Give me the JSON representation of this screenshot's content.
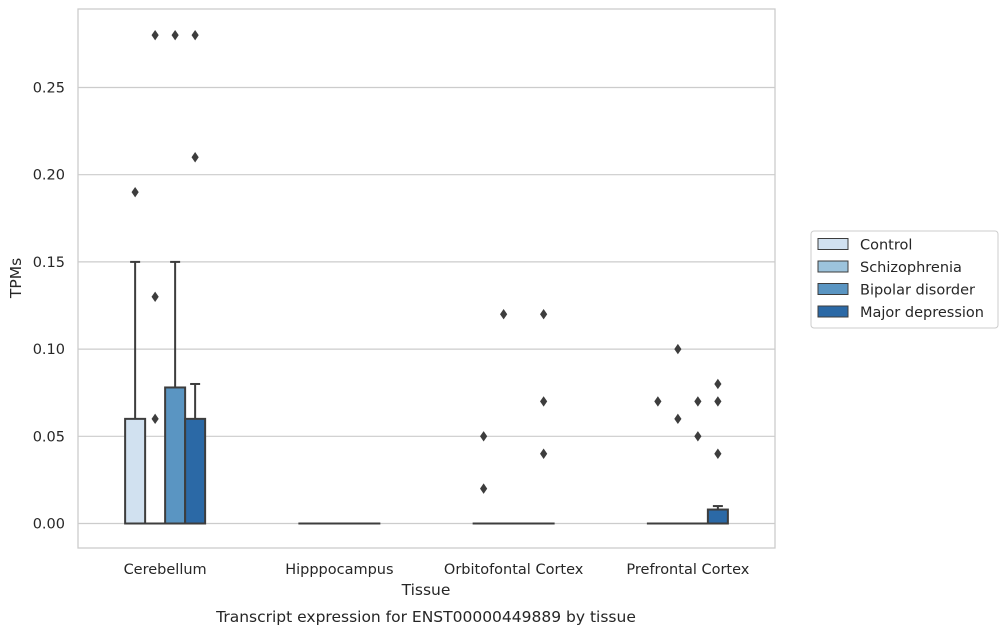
{
  "chart_data": {
    "type": "box",
    "title": "",
    "caption": "Transcript expression for ENST00000449889 by tissue",
    "xlabel": "Tissue",
    "ylabel": "TPMs",
    "ylim": [
      -0.0135,
      0.29
    ],
    "yticks": [
      0.0,
      0.05,
      0.1,
      0.15,
      0.2,
      0.25
    ],
    "ytick_labels": [
      "0.00",
      "0.05",
      "0.10",
      "0.15",
      "0.20",
      "0.25"
    ],
    "grid": "horizontal",
    "legend_position": "right-center",
    "categories": [
      "Cerebellum",
      "Hipppocampus",
      "Orbitofontal Cortex",
      "Prefrontal Cortex"
    ],
    "series": [
      {
        "name": "Control",
        "color": "#d1e1f0",
        "boxes": [
          {
            "q1": 0.0,
            "median": 0.0,
            "q3": 0.06,
            "whisker_low": 0.0,
            "whisker_high": 0.15,
            "outliers": [
              0.19
            ]
          },
          {
            "q1": 0.0,
            "median": 0.0,
            "q3": 0.0,
            "whisker_low": 0.0,
            "whisker_high": 0.0,
            "outliers": []
          },
          {
            "q1": 0.0,
            "median": 0.0,
            "q3": 0.0,
            "whisker_low": 0.0,
            "whisker_high": 0.0,
            "outliers": [
              0.05,
              0.02
            ]
          },
          {
            "q1": 0.0,
            "median": 0.0,
            "q3": 0.0,
            "whisker_low": 0.0,
            "whisker_high": 0.0,
            "outliers": [
              0.07
            ]
          }
        ]
      },
      {
        "name": "Schizophrenia",
        "color": "#9cc3dc",
        "boxes": [
          {
            "q1": 0.0,
            "median": 0.0,
            "q3": 0.0,
            "whisker_low": 0.0,
            "whisker_high": 0.0,
            "outliers": [
              0.28,
              0.13,
              0.06
            ]
          },
          {
            "q1": 0.0,
            "median": 0.0,
            "q3": 0.0,
            "whisker_low": 0.0,
            "whisker_high": 0.0,
            "outliers": []
          },
          {
            "q1": 0.0,
            "median": 0.0,
            "q3": 0.0,
            "whisker_low": 0.0,
            "whisker_high": 0.0,
            "outliers": [
              0.12
            ]
          },
          {
            "q1": 0.0,
            "median": 0.0,
            "q3": 0.0,
            "whisker_low": 0.0,
            "whisker_high": 0.0,
            "outliers": [
              0.1,
              0.06
            ]
          }
        ]
      },
      {
        "name": "Bipolar disorder",
        "color": "#5a95c2",
        "boxes": [
          {
            "q1": 0.0,
            "median": 0.0,
            "q3": 0.078,
            "whisker_low": 0.0,
            "whisker_high": 0.15,
            "outliers": [
              0.28
            ]
          },
          {
            "q1": 0.0,
            "median": 0.0,
            "q3": 0.0,
            "whisker_low": 0.0,
            "whisker_high": 0.0,
            "outliers": []
          },
          {
            "q1": 0.0,
            "median": 0.0,
            "q3": 0.0,
            "whisker_low": 0.0,
            "whisker_high": 0.0,
            "outliers": []
          },
          {
            "q1": 0.0,
            "median": 0.0,
            "q3": 0.0,
            "whisker_low": 0.0,
            "whisker_high": 0.0,
            "outliers": [
              0.07,
              0.05
            ]
          }
        ]
      },
      {
        "name": "Major depression",
        "color": "#2b69a6",
        "boxes": [
          {
            "q1": 0.0,
            "median": 0.0,
            "q3": 0.06,
            "whisker_low": 0.0,
            "whisker_high": 0.08,
            "outliers": [
              0.28,
              0.21
            ]
          },
          {
            "q1": 0.0,
            "median": 0.0,
            "q3": 0.0,
            "whisker_low": 0.0,
            "whisker_high": 0.0,
            "outliers": []
          },
          {
            "q1": 0.0,
            "median": 0.0,
            "q3": 0.0,
            "whisker_low": 0.0,
            "whisker_high": 0.0,
            "outliers": [
              0.12,
              0.07,
              0.04
            ]
          },
          {
            "q1": 0.0,
            "median": 0.0,
            "q3": 0.008,
            "whisker_low": 0.0,
            "whisker_high": 0.01,
            "outliers": [
              0.08,
              0.07,
              0.04
            ]
          }
        ]
      }
    ]
  }
}
